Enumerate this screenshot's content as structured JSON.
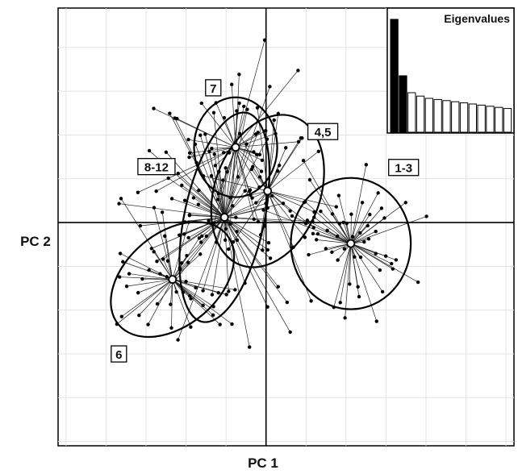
{
  "chart_data": {
    "type": "scatter",
    "title": "",
    "xlabel": "PC 1",
    "ylabel": "PC 2",
    "xlim": [
      -2.6,
      3.1
    ],
    "ylim": [
      -2.55,
      2.45
    ],
    "grid": true,
    "groups": [
      {
        "label": "1-3",
        "centroid": [
          1.06,
          -0.24
        ],
        "ellipse": {
          "rx": 0.75,
          "ry": 0.75,
          "angle": 0
        },
        "n": 55,
        "spread": [
          0.75,
          0.75
        ],
        "label_pos": [
          1.72,
          0.62
        ]
      },
      {
        "label": "4,5",
        "centroid": [
          0.02,
          0.36
        ],
        "ellipse": {
          "rx": 0.66,
          "ry": 0.9,
          "angle": 20
        },
        "n": 30,
        "spread": [
          0.75,
          0.9
        ],
        "label_pos": [
          0.71,
          1.03
        ]
      },
      {
        "label": "7",
        "centroid": [
          -0.38,
          0.86
        ],
        "ellipse": {
          "rx": 0.52,
          "ry": 0.57,
          "angle": 0
        },
        "n": 40,
        "spread": [
          0.85,
          0.9
        ],
        "label_pos": [
          -0.66,
          1.53
        ]
      },
      {
        "label": "8-12",
        "centroid": [
          -0.52,
          0.06
        ],
        "ellipse": {
          "rx": 0.5,
          "ry": 1.22,
          "angle": 12
        },
        "n": 75,
        "spread": [
          0.95,
          1.1
        ],
        "label_pos": [
          -1.37,
          0.63
        ]
      },
      {
        "label": "6",
        "centroid": [
          -1.17,
          -0.65
        ],
        "ellipse": {
          "rx": 0.88,
          "ry": 0.53,
          "angle": -40
        },
        "n": 45,
        "spread": [
          0.8,
          0.65
        ],
        "label_pos": [
          -1.84,
          -1.51
        ]
      }
    ],
    "inset": {
      "title": "Eigenvalues",
      "type": "bar",
      "values": [
        1.0,
        0.5,
        0.35,
        0.32,
        0.3,
        0.29,
        0.28,
        0.27,
        0.26,
        0.25,
        0.24,
        0.23,
        0.22,
        0.21
      ],
      "filled_count": 2
    }
  }
}
